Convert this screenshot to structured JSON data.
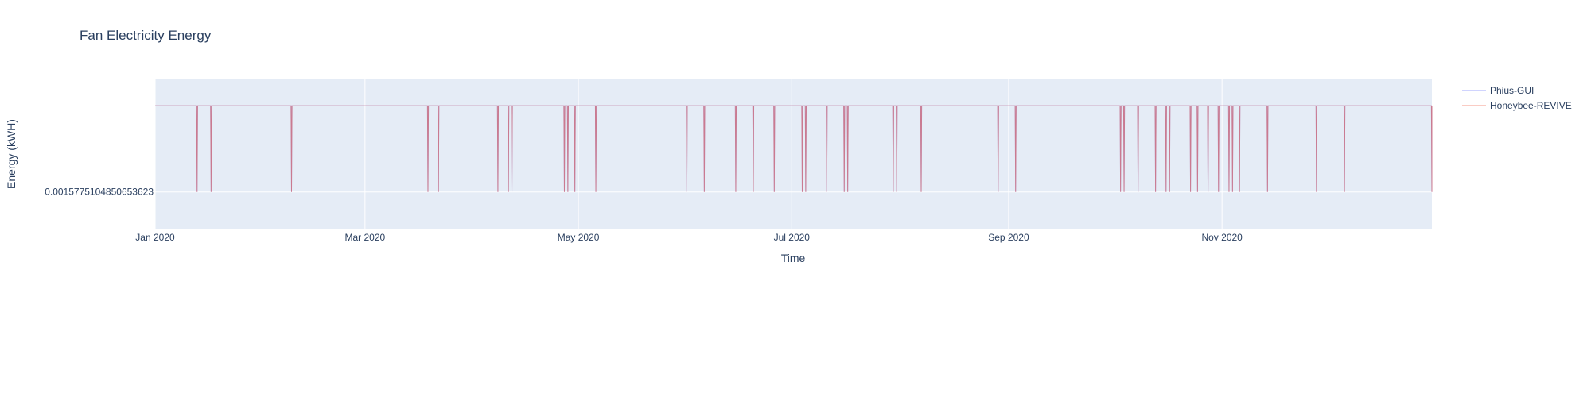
{
  "chart_data": {
    "type": "line",
    "title": "Fan Electricity Energy",
    "xlabel": "Time",
    "ylabel": "Energy (kWH)",
    "x_range": [
      "2020-01-01",
      "2020-12-31"
    ],
    "x_ticks": [
      {
        "date": "2020-01-01",
        "label": "Jan 2020"
      },
      {
        "date": "2020-03-01",
        "label": "Mar 2020"
      },
      {
        "date": "2020-05-01",
        "label": "May 2020"
      },
      {
        "date": "2020-07-01",
        "label": "Jul 2020"
      },
      {
        "date": "2020-09-01",
        "label": "Sep 2020"
      },
      {
        "date": "2020-11-01",
        "label": "Nov 2020"
      }
    ],
    "y_ticks": [
      {
        "value": 0.0015775104850653623,
        "label": "0.0015775104850653623"
      }
    ],
    "baseline_value": 0.0015775104850653623,
    "high_value": 0.0021,
    "ylim": [
      0.00135,
      0.00226
    ],
    "grid": true,
    "legend_position": "top-right",
    "dip_dates": [
      "2020-01-13",
      "2020-01-17",
      "2020-02-09",
      "2020-03-19",
      "2020-03-22",
      "2020-04-08",
      "2020-04-11",
      "2020-04-12",
      "2020-04-27",
      "2020-04-28",
      "2020-04-30",
      "2020-05-06",
      "2020-06-01",
      "2020-06-06",
      "2020-06-15",
      "2020-06-20",
      "2020-06-26",
      "2020-07-04",
      "2020-07-05",
      "2020-07-11",
      "2020-07-16",
      "2020-07-17",
      "2020-07-30",
      "2020-07-31",
      "2020-08-07",
      "2020-08-29",
      "2020-09-03",
      "2020-10-03",
      "2020-10-04",
      "2020-10-08",
      "2020-10-13",
      "2020-10-16",
      "2020-10-17",
      "2020-10-23",
      "2020-10-25",
      "2020-10-28",
      "2020-10-31",
      "2020-11-03",
      "2020-11-04",
      "2020-11-06",
      "2020-11-14",
      "2020-11-28",
      "2020-12-06",
      "2020-12-31"
    ],
    "series": [
      {
        "name": "Phius-GUI",
        "color": "#636efa"
      },
      {
        "name": "Honeybee-REVIVE",
        "color": "#ef553b"
      }
    ]
  },
  "colors": {
    "plot_background": "#e5ecf6",
    "grid": "#ffffff",
    "text": "#2a3f5f"
  }
}
